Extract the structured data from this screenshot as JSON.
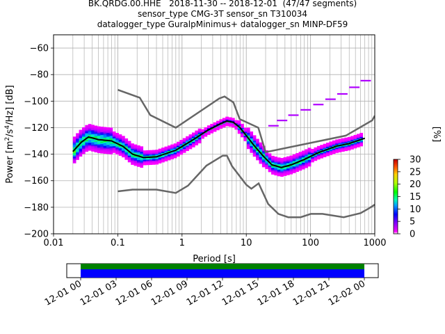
{
  "title_lines": [
    "BK.QRDG.00.HHE   2018-11-30 -- 2018-12-01  (47/47 segments)",
    "sensor_type CMG-3T sensor_sn T310034",
    "datalogger_type GuralpMinimus+ datalogger_sn MINP-DF59"
  ],
  "chart_data": {
    "type": "heatmap",
    "title": "BK.QRDG.00.HHE   2018-11-30 -- 2018-12-01  (47/47 segments)",
    "xlabel": "Period [s]",
    "ylabel_parts": [
      "Power [m",
      "2",
      "/s",
      "4",
      "/Hz] [dB]"
    ],
    "xscale": "log",
    "xlim": [
      0.01,
      1000
    ],
    "ylim": [
      -200,
      -50
    ],
    "grid": true,
    "x_ticks": [
      {
        "value": 0.01,
        "label": "0.01"
      },
      {
        "value": 0.1,
        "label": "0.1"
      },
      {
        "value": 1,
        "label": "1"
      },
      {
        "value": 10,
        "label": "10"
      },
      {
        "value": 100,
        "label": "100"
      },
      {
        "value": 1000,
        "label": "1000"
      }
    ],
    "y_ticks": [
      -60,
      -80,
      -100,
      -120,
      -140,
      -160,
      -180,
      -200
    ],
    "colorbar": {
      "label": "[%]",
      "ticks": [
        0,
        5,
        10,
        15,
        20,
        25,
        30
      ],
      "range": [
        0,
        30
      ]
    },
    "noise_model_high": [
      [
        0.1,
        -91.5
      ],
      [
        0.22,
        -97.4
      ],
      [
        0.32,
        -110.5
      ],
      [
        0.8,
        -120
      ],
      [
        3.8,
        -98
      ],
      [
        4.6,
        -96.5
      ],
      [
        6.3,
        -101
      ],
      [
        7.9,
        -113.5
      ],
      [
        15.4,
        -120
      ],
      [
        20,
        -138.5
      ],
      [
        354.8,
        -126
      ],
      [
        912,
        -114.5
      ],
      [
        1000,
        -111
      ]
    ],
    "noise_model_low": [
      [
        0.1,
        -168
      ],
      [
        0.17,
        -166.7
      ],
      [
        0.4,
        -166.7
      ],
      [
        0.8,
        -169.2
      ],
      [
        1.24,
        -163.7
      ],
      [
        2.4,
        -148.6
      ],
      [
        4.3,
        -141.1
      ],
      [
        5.0,
        -141.1
      ],
      [
        6.0,
        -149
      ],
      [
        10,
        -163
      ],
      [
        12,
        -166
      ],
      [
        15.6,
        -162
      ],
      [
        21.9,
        -177.5
      ],
      [
        31.6,
        -185
      ],
      [
        45,
        -187.5
      ],
      [
        70,
        -187.5
      ],
      [
        101,
        -185
      ],
      [
        154,
        -185
      ],
      [
        328,
        -187.5
      ],
      [
        600,
        -184.4
      ],
      [
        800,
        -181
      ],
      [
        1000,
        -178
      ]
    ],
    "mean_psd": [
      [
        0.02,
        -138
      ],
      [
        0.027,
        -131
      ],
      [
        0.035,
        -127
      ],
      [
        0.05,
        -129
      ],
      [
        0.08,
        -130
      ],
      [
        0.12,
        -134
      ],
      [
        0.17,
        -140
      ],
      [
        0.25,
        -142.5
      ],
      [
        0.4,
        -142
      ],
      [
        0.8,
        -137
      ],
      [
        1.5,
        -129
      ],
      [
        2.5,
        -122
      ],
      [
        4.0,
        -117
      ],
      [
        5.0,
        -115
      ],
      [
        6.3,
        -116
      ],
      [
        8.0,
        -120
      ],
      [
        10,
        -126
      ],
      [
        13,
        -133
      ],
      [
        18,
        -141
      ],
      [
        25,
        -148
      ],
      [
        35,
        -150
      ],
      [
        50,
        -148
      ],
      [
        80,
        -144
      ],
      [
        130,
        -139
      ],
      [
        250,
        -134
      ],
      [
        400,
        -132
      ],
      [
        700,
        -128
      ]
    ],
    "time_axis": {
      "ticks": [
        "12-01 00",
        "12-01 03",
        "12-01 06",
        "12-01 09",
        "12-01 12",
        "12-01 15",
        "12-01 18",
        "12-01 21",
        "12-02 00"
      ],
      "coverage_colors": [
        "#008000",
        "#0000ff"
      ]
    }
  }
}
